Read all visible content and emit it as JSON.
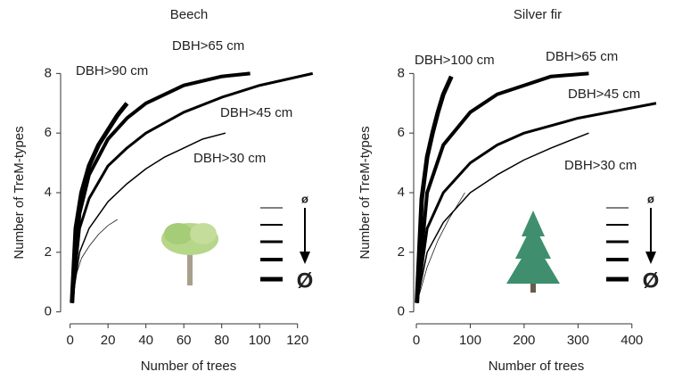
{
  "chart_data": [
    {
      "type": "line",
      "title": "Beech",
      "xlabel": "Number of trees",
      "ylabel": "Number of TreM-types",
      "xlim": [
        -5,
        130
      ],
      "ylim": [
        -0.4,
        8.4
      ],
      "xticks": [
        0,
        20,
        40,
        60,
        80,
        100,
        120
      ],
      "yticks": [
        0,
        2,
        4,
        6,
        8
      ],
      "legend_labels": [
        "ø",
        "Ø"
      ],
      "series": [
        {
          "name": null,
          "color": "#000000",
          "linewidth": 0.7,
          "x": [
            1,
            3,
            6,
            10,
            15,
            20,
            25
          ],
          "values": [
            0.3,
            1.2,
            1.8,
            2.2,
            2.6,
            2.9,
            3.1
          ]
        },
        {
          "name": "DBH>30 cm",
          "color": "#000000",
          "linewidth": 1.5,
          "x": [
            1,
            5,
            10,
            20,
            30,
            40,
            50,
            60,
            70,
            82
          ],
          "values": [
            0.3,
            2.0,
            2.8,
            3.7,
            4.3,
            4.8,
            5.2,
            5.5,
            5.8,
            6.0
          ]
        },
        {
          "name": "DBH>45 cm",
          "color": "#000000",
          "linewidth": 3,
          "x": [
            1,
            5,
            10,
            20,
            30,
            40,
            60,
            80,
            100,
            128
          ],
          "values": [
            0.3,
            2.8,
            3.8,
            4.9,
            5.5,
            6.0,
            6.7,
            7.2,
            7.6,
            8.0
          ]
        },
        {
          "name": "DBH>65 cm",
          "color": "#000000",
          "linewidth": 4,
          "x": [
            1,
            5,
            10,
            20,
            30,
            40,
            60,
            80,
            95
          ],
          "values": [
            0.3,
            3.3,
            4.6,
            5.8,
            6.5,
            7.0,
            7.6,
            7.9,
            8.0
          ]
        },
        {
          "name": "DBH>90 cm",
          "color": "#000000",
          "linewidth": 5,
          "x": [
            1,
            3,
            6,
            10,
            15,
            20,
            25,
            30
          ],
          "values": [
            0.3,
            2.8,
            4.0,
            4.9,
            5.6,
            6.1,
            6.6,
            7.0
          ]
        }
      ]
    },
    {
      "type": "line",
      "title": "Silver fir",
      "xlabel": "Number of trees",
      "ylabel": "Number of TreM-types",
      "xlim": [
        -5,
        450
      ],
      "ylim": [
        -0.4,
        8.4
      ],
      "xticks": [
        0,
        100,
        200,
        300,
        400
      ],
      "yticks": [
        0,
        2,
        4,
        6,
        8
      ],
      "legend_labels": [
        "ø",
        "Ø"
      ],
      "series": [
        {
          "name": null,
          "color": "#000000",
          "linewidth": 0.7,
          "x": [
            1,
            20,
            40,
            60,
            90
          ],
          "values": [
            0.3,
            1.5,
            2.4,
            3.1,
            4.0
          ]
        },
        {
          "name": "DBH>30 cm",
          "color": "#000000",
          "linewidth": 1.5,
          "x": [
            1,
            20,
            50,
            100,
            150,
            200,
            250,
            320
          ],
          "values": [
            0.3,
            2.0,
            3.0,
            4.0,
            4.6,
            5.1,
            5.5,
            6.0
          ]
        },
        {
          "name": "DBH>45 cm",
          "color": "#000000",
          "linewidth": 3,
          "x": [
            1,
            20,
            50,
            100,
            150,
            200,
            300,
            445
          ],
          "values": [
            0.3,
            2.8,
            4.0,
            5.0,
            5.6,
            6.0,
            6.5,
            7.0
          ]
        },
        {
          "name": "DBH>65 cm",
          "color": "#000000",
          "linewidth": 4,
          "x": [
            1,
            20,
            50,
            100,
            150,
            200,
            250,
            320
          ],
          "values": [
            0.3,
            4.0,
            5.6,
            6.7,
            7.3,
            7.6,
            7.9,
            8.0
          ]
        },
        {
          "name": "DBH>100 cm",
          "color": "#000000",
          "linewidth": 5,
          "x": [
            1,
            10,
            20,
            30,
            40,
            50,
            65
          ],
          "values": [
            0.3,
            3.8,
            5.2,
            6.0,
            6.7,
            7.3,
            7.9
          ]
        }
      ]
    }
  ]
}
